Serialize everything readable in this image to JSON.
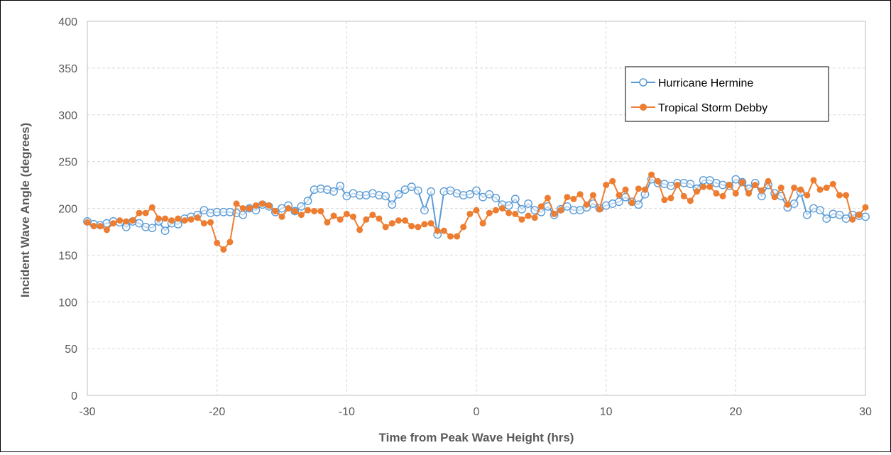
{
  "chart_data": {
    "type": "line",
    "title": "",
    "xlabel": "Time from Peak Wave Height (hrs)",
    "ylabel": "Incident Wave Angle (degrees)",
    "xlim": [
      -30,
      30
    ],
    "ylim": [
      0,
      400
    ],
    "xticks": [
      -30,
      -20,
      -10,
      0,
      10,
      20,
      30
    ],
    "yticks": [
      0,
      50,
      100,
      150,
      200,
      250,
      300,
      350,
      400
    ],
    "grid": true,
    "legend_position": "top-right",
    "series": [
      {
        "name": "Hurricane Hermine",
        "color": "#5B9BD5",
        "marker": "open-circle",
        "x": [
          -30,
          -29.5,
          -29,
          -28.5,
          -28,
          -27.5,
          -27,
          -26.5,
          -26,
          -25.5,
          -25,
          -24.5,
          -24,
          -23.5,
          -23,
          -22.5,
          -22,
          -21.5,
          -21,
          -20.5,
          -20,
          -19.5,
          -19,
          -18.5,
          -18,
          -17.5,
          -17,
          -16.5,
          -16,
          -15.5,
          -15,
          -14.5,
          -14,
          -13.5,
          -13,
          -12.5,
          -12,
          -11.5,
          -11,
          -10.5,
          -10,
          -9.5,
          -9,
          -8.5,
          -8,
          -7.5,
          -7,
          -6.5,
          -6,
          -5.5,
          -5,
          -4.5,
          -4,
          -3.5,
          -3,
          -2.5,
          -2,
          -1.5,
          -1,
          -0.5,
          0,
          0.5,
          1,
          1.5,
          2,
          2.5,
          3,
          3.5,
          4,
          4.5,
          5,
          5.5,
          6,
          6.5,
          7,
          7.5,
          8,
          8.5,
          9,
          9.5,
          10,
          10.5,
          11,
          11.5,
          12,
          12.5,
          13,
          13.5,
          14,
          14.5,
          15,
          15.5,
          16,
          16.5,
          17,
          17.5,
          18,
          18.5,
          19,
          19.5,
          20,
          20.5,
          21,
          21.5,
          22,
          22.5,
          23,
          23.5,
          24,
          24.5,
          25,
          25.5,
          26,
          26.5,
          27,
          27.5,
          28,
          28.5,
          29,
          29.5,
          30
        ],
        "y": [
          186,
          183,
          182,
          184,
          186,
          185,
          180,
          186,
          184,
          180,
          179,
          186,
          176,
          184,
          183,
          189,
          191,
          193,
          198,
          195,
          196,
          196,
          196,
          195,
          193,
          200,
          198,
          204,
          202,
          196,
          200,
          203,
          197,
          202,
          208,
          220,
          221,
          220,
          218,
          224,
          213,
          216,
          214,
          214,
          216,
          214,
          213,
          204,
          215,
          220,
          223,
          219,
          198,
          218,
          172,
          218,
          219,
          216,
          214,
          215,
          219,
          212,
          215,
          211,
          204,
          203,
          210,
          199,
          205,
          198,
          196,
          202,
          193,
          199,
          202,
          198,
          198,
          201,
          205,
          200,
          203,
          205,
          207,
          212,
          207,
          204,
          215,
          231,
          227,
          226,
          224,
          227,
          227,
          226,
          221,
          230,
          230,
          227,
          225,
          224,
          231,
          228,
          221,
          227,
          213,
          225,
          216,
          213,
          201,
          205,
          217,
          193,
          200,
          198,
          189,
          194,
          193,
          189,
          193,
          192,
          191
        ]
      },
      {
        "name": "Tropical Storm Debby",
        "color": "#ED7D31",
        "marker": "filled-circle",
        "x": [
          -30,
          -29.5,
          -29,
          -28.5,
          -28,
          -27.5,
          -27,
          -26.5,
          -26,
          -25.5,
          -25,
          -24.5,
          -24,
          -23.5,
          -23,
          -22.5,
          -22,
          -21.5,
          -21,
          -20.5,
          -20,
          -19.5,
          -19,
          -18.5,
          -18,
          -17.5,
          -17,
          -16.5,
          -16,
          -15.5,
          -15,
          -14.5,
          -14,
          -13.5,
          -13,
          -12.5,
          -12,
          -11.5,
          -11,
          -10.5,
          -10,
          -9.5,
          -9,
          -8.5,
          -8,
          -7.5,
          -7,
          -6.5,
          -6,
          -5.5,
          -5,
          -4.5,
          -4,
          -3.5,
          -3,
          -2.5,
          -2,
          -1.5,
          -1,
          -0.5,
          0,
          0.5,
          1,
          1.5,
          2,
          2.5,
          3,
          3.5,
          4,
          4.5,
          5,
          5.5,
          6,
          6.5,
          7,
          7.5,
          8,
          8.5,
          9,
          9.5,
          10,
          10.5,
          11,
          11.5,
          12,
          12.5,
          13,
          13.5,
          14,
          14.5,
          15,
          15.5,
          16,
          16.5,
          17,
          17.5,
          18,
          18.5,
          19,
          19.5,
          20,
          20.5,
          21,
          21.5,
          22,
          22.5,
          23,
          23.5,
          24,
          24.5,
          25,
          25.5,
          26,
          26.5,
          27,
          27.5,
          28,
          28.5,
          29,
          29.5,
          30
        ],
        "y": [
          185,
          181,
          181,
          177,
          184,
          187,
          186,
          187,
          195,
          195,
          201,
          189,
          189,
          187,
          189,
          187,
          188,
          190,
          184,
          185,
          163,
          156,
          164,
          205,
          200,
          200,
          203,
          205,
          203,
          197,
          191,
          200,
          197,
          193,
          198,
          197,
          197,
          185,
          192,
          188,
          194,
          191,
          177,
          188,
          193,
          189,
          180,
          184,
          187,
          187,
          181,
          180,
          183,
          184,
          176,
          176,
          170,
          170,
          180,
          194,
          198,
          184,
          195,
          198,
          200,
          195,
          194,
          188,
          192,
          190,
          202,
          211,
          194,
          198,
          212,
          210,
          215,
          204,
          214,
          199,
          225,
          229,
          214,
          220,
          206,
          221,
          220,
          236,
          229,
          209,
          211,
          225,
          213,
          208,
          218,
          223,
          223,
          216,
          213,
          225,
          216,
          228,
          216,
          225,
          219,
          229,
          212,
          222,
          204,
          222,
          220,
          214,
          230,
          220,
          222,
          226,
          214,
          214,
          188,
          193,
          201
        ]
      }
    ]
  }
}
